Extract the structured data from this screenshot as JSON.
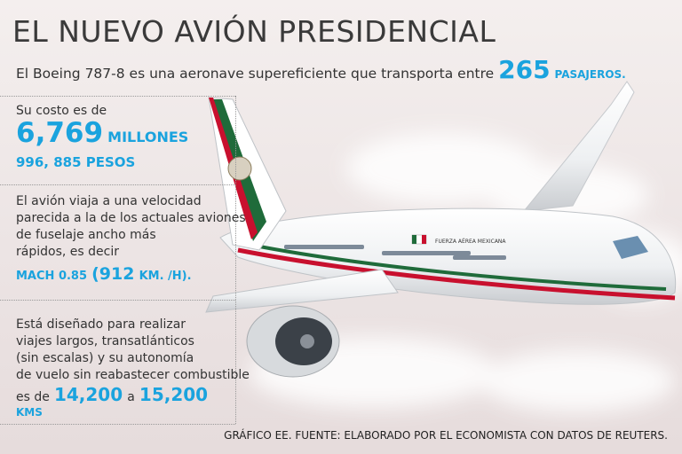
{
  "header": {
    "title": "EL NUEVO AVIÓN PRESIDENCIAL",
    "subtitle": {
      "text": "El Boeing 787-8 es una aeronave supereficiente que transporta entre",
      "number": "265",
      "unit": "PASAJEROS."
    }
  },
  "sections": [
    {
      "intro": "Su costo es de",
      "number": "6,769",
      "unit": "MILLONES",
      "detail": "996, 885 PESOS"
    },
    {
      "lines": [
        "El avión viaja a una velocidad",
        "parecida a la de los actuales aviones",
        "de fuselaje ancho más",
        "rápidos, es decir"
      ],
      "speed": "MACH 0.85",
      "number": "(912",
      "unit": "KM. /H)."
    },
    {
      "lines": [
        "Está diseñado para realizar",
        "viajes largos, transatlánticos",
        "(sin escalas) y su autonomía",
        "de vuelo sin reabastecer combustible"
      ],
      "lead": "es de",
      "from": "14,200",
      "joiner": "a",
      "to": "15,200",
      "unit": "KMS"
    }
  ],
  "aircraft": {
    "label": "FUERZA AÉREA MEXICANA"
  },
  "footer": {
    "source": "GRÁFICO EE. FUENTE: ELABORADO POR EL ECONOMISTA CON DATOS DE REUTERS."
  }
}
